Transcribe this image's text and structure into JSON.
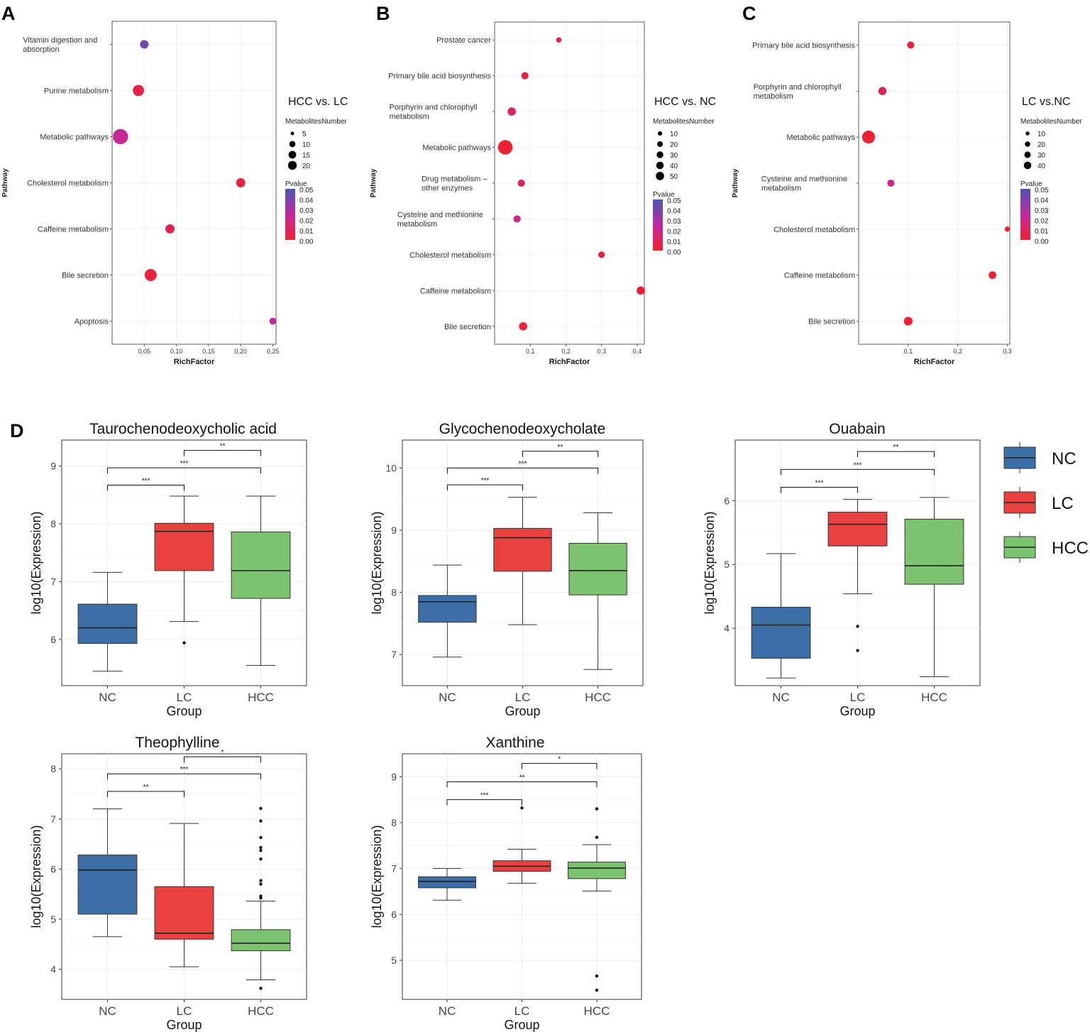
{
  "figure": {
    "panel_labels": [
      "A",
      "B",
      "C",
      "D"
    ],
    "colors": {
      "pvalue_high": "#4b55b5",
      "pvalue_mid": "#c02aa0",
      "pvalue_low": "#f02030",
      "NC": "#3b6fa5",
      "LC": "#e8413f",
      "HCC": "#7cc26f",
      "panel_bg": "#ffffff",
      "grid": "#ebebeb"
    },
    "group_legend": {
      "items": [
        {
          "label": "NC",
          "color": "#3b6fa5"
        },
        {
          "label": "LC",
          "color": "#e8413f"
        },
        {
          "label": "HCC",
          "color": "#7cc26f"
        }
      ]
    }
  },
  "chart_data": [
    {
      "id": "A",
      "type": "scatter",
      "title": "HCC vs. LC",
      "xlabel": "RichFactor",
      "ylabel": "Pathway",
      "xlim": [
        0,
        0.255
      ],
      "xticks": [
        0.05,
        0.1,
        0.15,
        0.2,
        0.25
      ],
      "xtick_labels": [
        "0.05",
        "0.10",
        "0.15",
        "0.20",
        "0.25"
      ],
      "points": [
        {
          "label": "Vitamin digestion and absorption",
          "label_lines": [
            "Vitamin digestion and",
            "absorption"
          ],
          "x": 0.05,
          "count": 5,
          "pvalue": 0.042
        },
        {
          "label": "Purine metabolism",
          "label_lines": [
            "Purine metabolism"
          ],
          "x": 0.041,
          "count": 10,
          "pvalue": 0.005
        },
        {
          "label": "Metabolic pathways",
          "label_lines": [
            "Metabolic pathways"
          ],
          "x": 0.013,
          "count": 21,
          "pvalue": 0.022
        },
        {
          "label": "Cholesterol metabolism",
          "label_lines": [
            "Cholesterol metabolism"
          ],
          "x": 0.2,
          "count": 6,
          "pvalue": 0.004
        },
        {
          "label": "Caffeine metabolism",
          "label_lines": [
            "Caffeine metabolism"
          ],
          "x": 0.09,
          "count": 6,
          "pvalue": 0.008
        },
        {
          "label": "Bile secretion",
          "label_lines": [
            "Bile secretion"
          ],
          "x": 0.06,
          "count": 12,
          "pvalue": 0.003
        },
        {
          "label": "Apoptosis",
          "label_lines": [
            "Apoptosis"
          ],
          "x": 0.25,
          "count": 3,
          "pvalue": 0.025
        }
      ],
      "size_legend": {
        "title": "MetabolitesNumber",
        "values": [
          5,
          10,
          15,
          20
        ]
      },
      "color_legend": {
        "title": "Pvalue",
        "labels": [
          "0.05",
          "0.04",
          "0.03",
          "0.02",
          "0.01",
          "0.00"
        ]
      }
    },
    {
      "id": "B",
      "type": "scatter",
      "title": "HCC vs. NC",
      "xlabel": "RichFactor",
      "ylabel": "Pathway",
      "xlim": [
        0.0,
        0.42
      ],
      "xticks": [
        0.1,
        0.2,
        0.3,
        0.4
      ],
      "xtick_labels": [
        "0.1",
        "0.2",
        "0.3",
        "0.4"
      ],
      "points": [
        {
          "label": "Prostate cancer",
          "label_lines": [
            "Prostate cancer"
          ],
          "x": 0.18,
          "count": 3,
          "pvalue": 0.003
        },
        {
          "label": "Primary bile acid biosynthesis",
          "label_lines": [
            "Primary bile acid biosynthesis"
          ],
          "x": 0.085,
          "count": 8,
          "pvalue": 0.004
        },
        {
          "label": "Porphyrin and chlorophyll metabolism",
          "label_lines": [
            "Porphyrin and chlorophyll",
            "metabolism"
          ],
          "x": 0.048,
          "count": 12,
          "pvalue": 0.012
        },
        {
          "label": "Metabolic pathways",
          "label_lines": [
            "Metabolic pathways"
          ],
          "x": 0.03,
          "count": 55,
          "pvalue": 0.001
        },
        {
          "label": "Drug metabolism - other enzymes",
          "label_lines": [
            "Drug metabolism –",
            "other enzymes"
          ],
          "x": 0.075,
          "count": 8,
          "pvalue": 0.008
        },
        {
          "label": "Cysteine and methionine metabolism",
          "label_lines": [
            "Cysteine and methionine",
            "metabolism"
          ],
          "x": 0.063,
          "count": 8,
          "pvalue": 0.018
        },
        {
          "label": "Cholesterol metabolism",
          "label_lines": [
            "Cholesterol metabolism"
          ],
          "x": 0.3,
          "count": 6,
          "pvalue": 0.003
        },
        {
          "label": "Caffeine metabolism",
          "label_lines": [
            "Caffeine metabolism"
          ],
          "x": 0.41,
          "count": 12,
          "pvalue": 0.002
        },
        {
          "label": "Bile secretion",
          "label_lines": [
            "Bile secretion"
          ],
          "x": 0.08,
          "count": 12,
          "pvalue": 0.002
        }
      ],
      "size_legend": {
        "title": "MetabolitesNumber",
        "values": [
          10,
          20,
          30,
          40,
          50
        ]
      },
      "color_legend": {
        "title": "Pvalue",
        "labels": [
          "0.05",
          "0.04",
          "0.03",
          "0.02",
          "0.01",
          "0.00"
        ]
      }
    },
    {
      "id": "C",
      "type": "scatter",
      "title": "LC vs.NC",
      "xlabel": "RichFactor",
      "ylabel": "Pathway",
      "xlim": [
        0.0,
        0.305
      ],
      "xticks": [
        0.1,
        0.2,
        0.3
      ],
      "xtick_labels": [
        "0.1",
        "0.2",
        "0.3"
      ],
      "points": [
        {
          "label": "Primary bile acid biosynthesis",
          "label_lines": [
            "Primary bile acid biosynthesis"
          ],
          "x": 0.105,
          "count": 8,
          "pvalue": 0.003
        },
        {
          "label": "Porphyrin and chlorophyll metabolism",
          "label_lines": [
            "Porphyrin and chlorophyll",
            "metabolism"
          ],
          "x": 0.048,
          "count": 12,
          "pvalue": 0.008
        },
        {
          "label": "Metabolic pathways",
          "label_lines": [
            "Metabolic pathways"
          ],
          "x": 0.02,
          "count": 42,
          "pvalue": 0.001
        },
        {
          "label": "Cysteine and methionine metabolism",
          "label_lines": [
            "Cysteine and methionine",
            "metabolism"
          ],
          "x": 0.065,
          "count": 8,
          "pvalue": 0.02
        },
        {
          "label": "Cholesterol metabolism",
          "label_lines": [
            "Cholesterol metabolism"
          ],
          "x": 0.3,
          "count": 3,
          "pvalue": 0.002
        },
        {
          "label": "Caffeine metabolism",
          "label_lines": [
            "Caffeine metabolism"
          ],
          "x": 0.27,
          "count": 10,
          "pvalue": 0.002
        },
        {
          "label": "Bile secretion",
          "label_lines": [
            "Bile secretion"
          ],
          "x": 0.1,
          "count": 14,
          "pvalue": 0.001
        }
      ],
      "size_legend": {
        "title": "MetabolitesNumber",
        "values": [
          10,
          20,
          30,
          40
        ]
      },
      "color_legend": {
        "title": "Pvalue",
        "labels": [
          "0.05",
          "0.04",
          "0.03",
          "0.02",
          "0.01",
          "0.00"
        ]
      }
    },
    {
      "id": "D1",
      "type": "box",
      "title": "Taurochenodeoxycholic acid",
      "xlabel": "Group",
      "ylabel": "log10(Expression)",
      "ylim": [
        5.2,
        9.45
      ],
      "yticks": [
        6,
        7,
        8,
        9
      ],
      "categories": [
        "NC",
        "LC",
        "HCC"
      ],
      "boxes": [
        {
          "min": 5.45,
          "q1": 5.93,
          "median": 6.2,
          "q3": 6.61,
          "max": 7.16,
          "outliers": []
        },
        {
          "min": 6.31,
          "q1": 7.19,
          "median": 7.87,
          "q3": 8.01,
          "max": 8.48,
          "outliers": [
            5.94
          ]
        },
        {
          "min": 5.55,
          "q1": 6.71,
          "median": 7.19,
          "q3": 7.86,
          "max": 8.48,
          "outliers": []
        }
      ],
      "brackets": [
        {
          "from": "NC",
          "to": "LC",
          "label": "***",
          "y": 8.67
        },
        {
          "from": "NC",
          "to": "HCC",
          "label": "***",
          "y": 8.97
        },
        {
          "from": "LC",
          "to": "HCC",
          "label": "**",
          "y": 9.27
        }
      ]
    },
    {
      "id": "D2",
      "type": "box",
      "title": "Glycochenodeoxycholate",
      "xlabel": "Group",
      "ylabel": "log10(Expression)",
      "ylim": [
        6.5,
        10.45
      ],
      "yticks": [
        7,
        8,
        9,
        10
      ],
      "categories": [
        "NC",
        "LC",
        "HCC"
      ],
      "boxes": [
        {
          "min": 6.96,
          "q1": 7.52,
          "median": 7.85,
          "q3": 7.95,
          "max": 8.44,
          "outliers": []
        },
        {
          "min": 7.48,
          "q1": 8.34,
          "median": 8.88,
          "q3": 9.03,
          "max": 9.53,
          "outliers": []
        },
        {
          "min": 6.76,
          "q1": 7.96,
          "median": 8.35,
          "q3": 8.79,
          "max": 9.28,
          "outliers": []
        }
      ],
      "brackets": [
        {
          "from": "NC",
          "to": "LC",
          "label": "***",
          "y": 9.73
        },
        {
          "from": "NC",
          "to": "HCC",
          "label": "***",
          "y": 10.0
        },
        {
          "from": "LC",
          "to": "HCC",
          "label": "**",
          "y": 10.27
        }
      ]
    },
    {
      "id": "D3",
      "type": "box",
      "title": "Ouabain",
      "xlabel": "Group",
      "ylabel": "log10(Expression)",
      "ylim": [
        3.1,
        6.95
      ],
      "yticks": [
        4,
        5,
        6
      ],
      "categories": [
        "NC",
        "LC",
        "HCC"
      ],
      "boxes": [
        {
          "min": 3.22,
          "q1": 3.53,
          "median": 4.05,
          "q3": 4.33,
          "max": 5.17,
          "outliers": []
        },
        {
          "min": 4.54,
          "q1": 5.29,
          "median": 5.63,
          "q3": 5.82,
          "max": 6.02,
          "outliers": [
            4.03,
            3.65
          ]
        },
        {
          "min": 3.24,
          "q1": 4.69,
          "median": 4.98,
          "q3": 5.71,
          "max": 6.05,
          "outliers": []
        }
      ],
      "brackets": [
        {
          "from": "NC",
          "to": "LC",
          "label": "***",
          "y": 6.21
        },
        {
          "from": "NC",
          "to": "HCC",
          "label": "***",
          "y": 6.49
        },
        {
          "from": "LC",
          "to": "HCC",
          "label": "**",
          "y": 6.77
        }
      ]
    },
    {
      "id": "D4",
      "type": "box",
      "title": "Theophylline",
      "xlabel": "Group",
      "ylabel": "log10(Expression)",
      "ylim": [
        3.4,
        8.3
      ],
      "yticks": [
        4,
        5,
        6,
        7,
        8
      ],
      "categories": [
        "NC",
        "LC",
        "HCC"
      ],
      "boxes": [
        {
          "min": 4.65,
          "q1": 5.1,
          "median": 5.98,
          "q3": 6.28,
          "max": 7.2,
          "outliers": []
        },
        {
          "min": 4.05,
          "q1": 4.6,
          "median": 4.72,
          "q3": 5.65,
          "max": 6.91,
          "outliers": []
        },
        {
          "min": 3.79,
          "q1": 4.37,
          "median": 4.52,
          "q3": 4.79,
          "max": 5.36,
          "outliers": [
            7.21,
            6.96,
            6.63,
            6.43,
            6.37,
            6.2,
            5.77,
            5.7,
            5.46,
            5.42,
            3.62
          ]
        }
      ],
      "brackets": [
        {
          "from": "NC",
          "to": "LC",
          "label": "**",
          "y": 7.55
        },
        {
          "from": "NC",
          "to": "HCC",
          "label": "***",
          "y": 7.9
        },
        {
          "from": "LC",
          "to": "HCC",
          "label": "*",
          "y": 8.24
        }
      ]
    },
    {
      "id": "D5",
      "type": "box",
      "title": "Xanthine",
      "xlabel": "Group",
      "ylabel": "log10(Expression)",
      "ylim": [
        4.15,
        9.5
      ],
      "yticks": [
        5,
        6,
        7,
        8,
        9
      ],
      "categories": [
        "NC",
        "LC",
        "HCC"
      ],
      "boxes": [
        {
          "min": 6.31,
          "q1": 6.58,
          "median": 6.72,
          "q3": 6.82,
          "max": 7.0,
          "outliers": []
        },
        {
          "min": 6.68,
          "q1": 6.94,
          "median": 7.05,
          "q3": 7.17,
          "max": 7.42,
          "outliers": [
            8.32
          ]
        },
        {
          "min": 6.51,
          "q1": 6.78,
          "median": 7.01,
          "q3": 7.14,
          "max": 7.52,
          "outliers": [
            8.3,
            7.68,
            4.66,
            4.35
          ]
        }
      ],
      "brackets": [
        {
          "from": "NC",
          "to": "LC",
          "label": "***",
          "y": 8.5
        },
        {
          "from": "NC",
          "to": "HCC",
          "label": "**",
          "y": 8.89
        },
        {
          "from": "LC",
          "to": "HCC",
          "label": "*",
          "y": 9.29
        }
      ]
    }
  ]
}
